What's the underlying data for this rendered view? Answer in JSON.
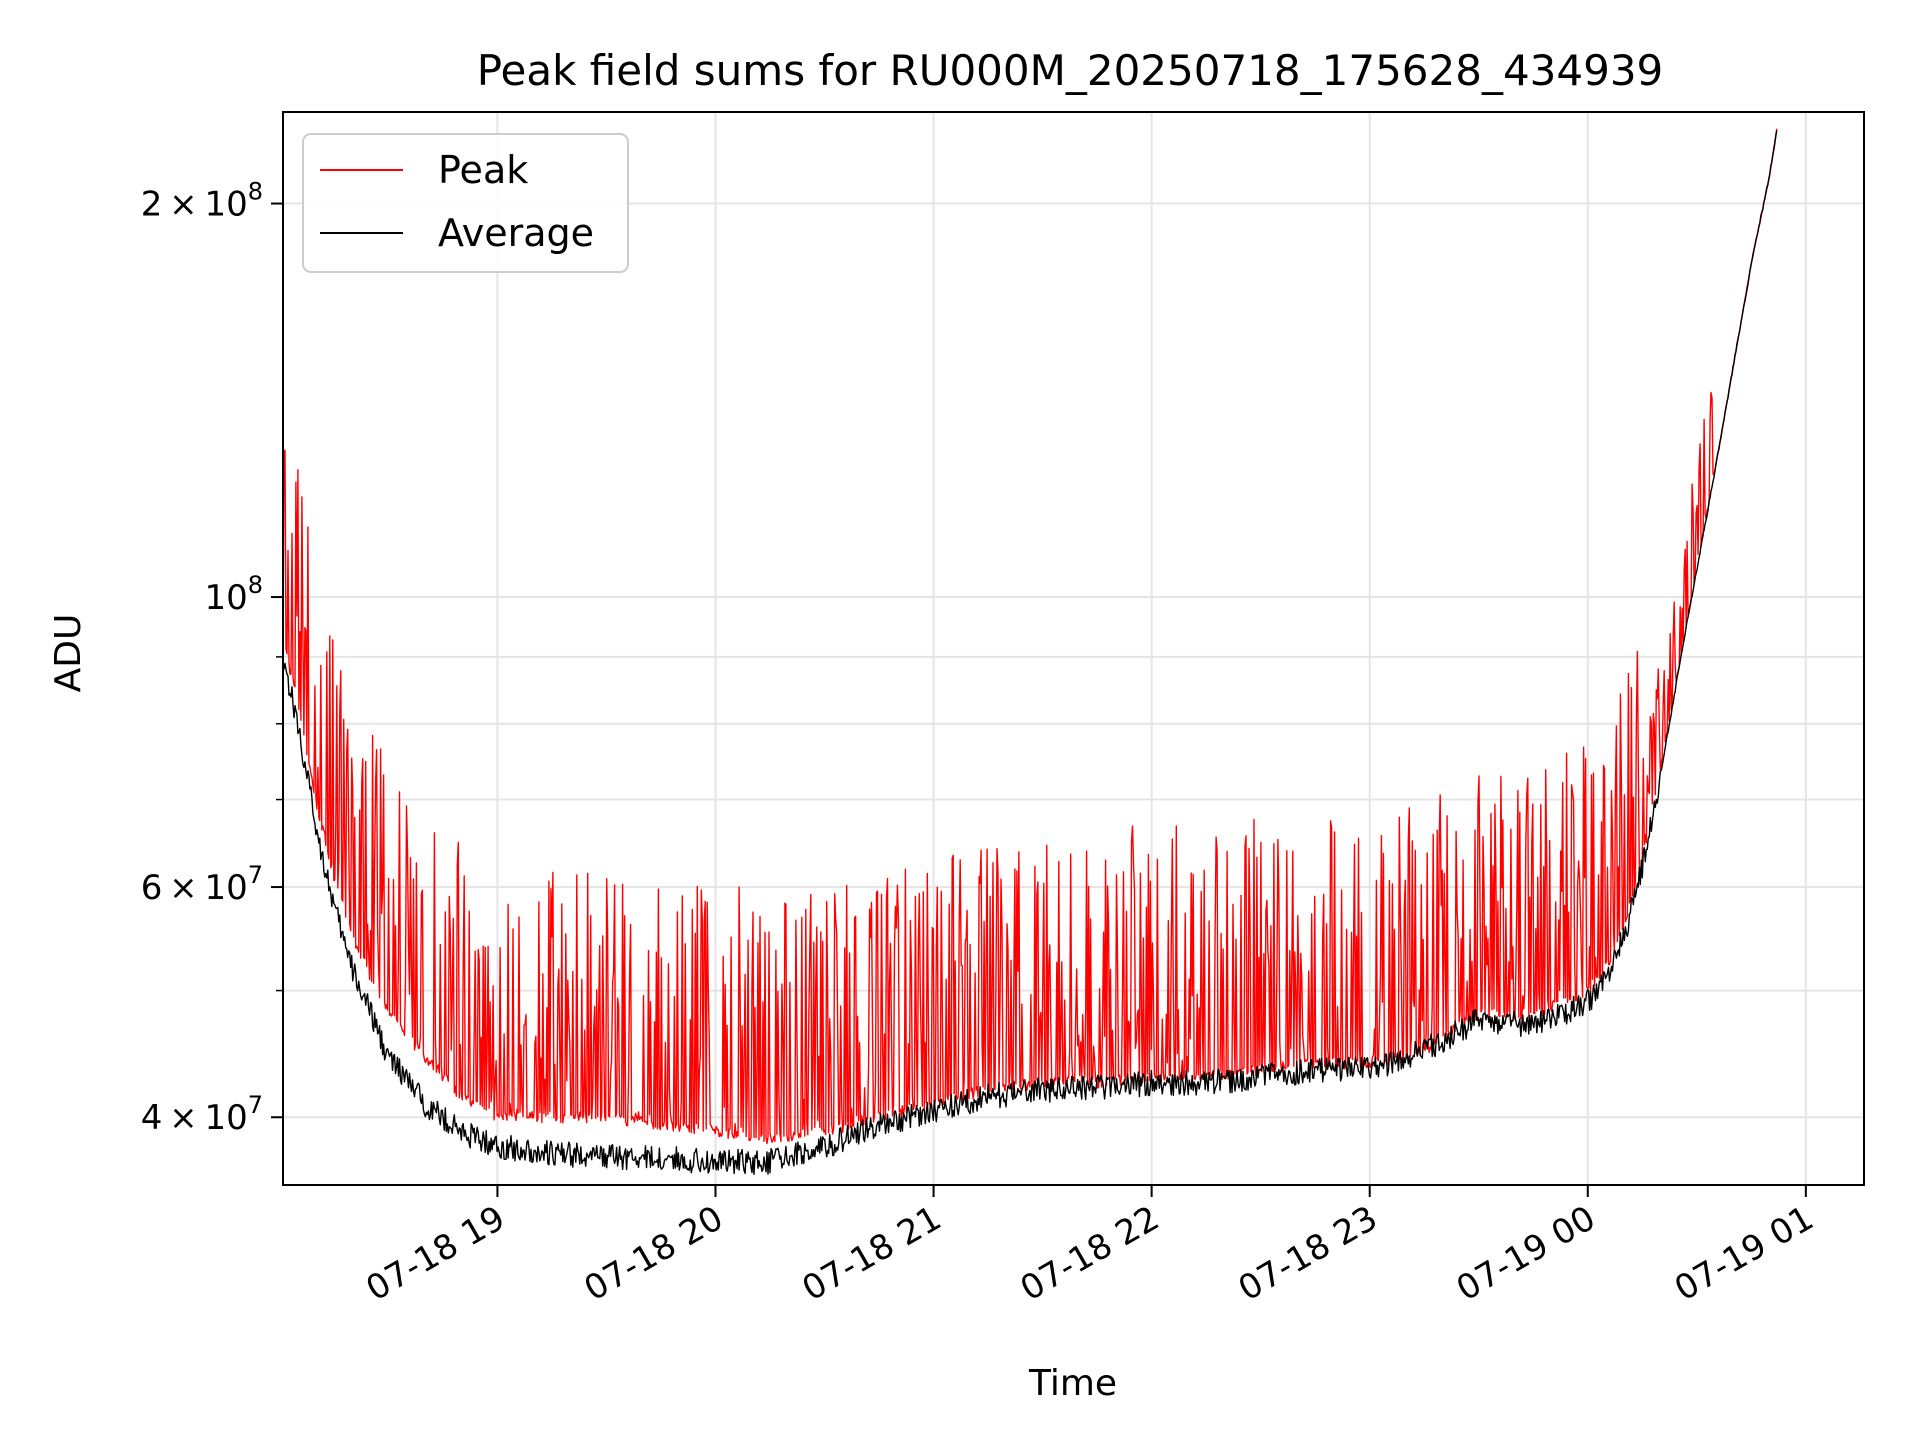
{
  "chart_data": {
    "type": "line",
    "title": "Peak field sums for RU000M_20250718_175628_434939",
    "xlabel": "Time",
    "ylabel": "ADU",
    "x_start": "07-18 18:01",
    "x_end": "07-19 01:16",
    "xlim": [
      "07-18 18:01",
      "07-19 01:16"
    ],
    "ylim": [
      35500000,
      235000000
    ],
    "yscale": "log",
    "grid": true,
    "legend_position": "top-left",
    "x_ticks": [
      {
        "label": "07-18 19",
        "time": "07-18 19:00"
      },
      {
        "label": "07-18 20",
        "time": "07-18 20:00"
      },
      {
        "label": "07-18 21",
        "time": "07-18 21:00"
      },
      {
        "label": "07-18 22",
        "time": "07-18 22:00"
      },
      {
        "label": "07-18 23",
        "time": "07-18 23:00"
      },
      {
        "label": "07-19 00",
        "time": "07-19 00:00"
      },
      {
        "label": "07-19 01",
        "time": "07-19 01:00"
      }
    ],
    "y_ticks": [
      {
        "mantissa": "4",
        "exp": "7",
        "value": 40000000
      },
      {
        "mantissa": "6",
        "exp": "7",
        "value": 60000000
      },
      {
        "mantissa": "",
        "exp": "8",
        "value": 100000000
      },
      {
        "mantissa": "2",
        "exp": "8",
        "value": 200000000
      }
    ],
    "y_minor_ticks": [
      50000000,
      70000000,
      80000000,
      90000000
    ],
    "series": [
      {
        "name": "Peak",
        "color": "#ff0000",
        "x": [
          "07-18 18:01",
          "07-18 18:05",
          "07-18 18:10",
          "07-18 18:15",
          "07-18 18:20",
          "07-18 18:30",
          "07-18 18:40",
          "07-18 18:50",
          "07-18 19:00",
          "07-18 19:15",
          "07-18 19:30",
          "07-18 19:45",
          "07-18 20:00",
          "07-18 20:15",
          "07-18 20:30",
          "07-18 20:45",
          "07-18 21:00",
          "07-18 21:15",
          "07-18 21:30",
          "07-18 21:45",
          "07-18 22:00",
          "07-18 22:15",
          "07-18 22:30",
          "07-18 22:45",
          "07-18 23:00",
          "07-18 23:15",
          "07-18 23:30",
          "07-18 23:45",
          "07-19 00:00",
          "07-19 00:05",
          "07-19 00:10",
          "07-19 00:15",
          "07-19 00:20",
          "07-19 00:25",
          "07-19 00:30",
          "07-19 00:35",
          "07-19 00:40",
          "07-19 00:45",
          "07-19 00:50",
          "07-19 00:52"
        ],
        "values": [
          93000000,
          83000000,
          70000000,
          61000000,
          55000000,
          48000000,
          44500000,
          41500000,
          40000000,
          40000000,
          40000000,
          39500000,
          39000000,
          38500000,
          39000000,
          40000000,
          41000000,
          42000000,
          42500000,
          42500000,
          43000000,
          43000000,
          43500000,
          44000000,
          44000000,
          45000000,
          48000000,
          48000000,
          50000000,
          52000000,
          56000000,
          63000000,
          74000000,
          88000000,
          105000000,
          125000000,
          150000000,
          180000000,
          210000000,
          228000000
        ]
      },
      {
        "name": "Average",
        "color": "#000000",
        "x": [
          "07-18 18:01",
          "07-18 18:05",
          "07-18 18:10",
          "07-18 18:15",
          "07-18 18:20",
          "07-18 18:30",
          "07-18 18:40",
          "07-18 18:50",
          "07-18 19:00",
          "07-18 19:15",
          "07-18 19:30",
          "07-18 19:45",
          "07-18 20:00",
          "07-18 20:15",
          "07-18 20:30",
          "07-18 20:45",
          "07-18 21:00",
          "07-18 21:15",
          "07-18 21:30",
          "07-18 21:45",
          "07-18 22:00",
          "07-18 22:15",
          "07-18 22:30",
          "07-18 22:45",
          "07-18 23:00",
          "07-18 23:15",
          "07-18 23:30",
          "07-18 23:45",
          "07-19 00:00",
          "07-19 00:05",
          "07-19 00:10",
          "07-19 00:15",
          "07-19 00:20",
          "07-19 00:25",
          "07-19 00:30",
          "07-19 00:35",
          "07-19 00:40",
          "07-19 00:45",
          "07-19 00:50",
          "07-19 00:52"
        ],
        "values": [
          90000000,
          80000000,
          67000000,
          58000000,
          52000000,
          44500000,
          41000000,
          39000000,
          38000000,
          37500000,
          37300000,
          37200000,
          37000000,
          37000000,
          38000000,
          39500000,
          40500000,
          41500000,
          42000000,
          42200000,
          42500000,
          42500000,
          43000000,
          43500000,
          43500000,
          45000000,
          47500000,
          47000000,
          49000000,
          51000000,
          55000000,
          62000000,
          73000000,
          88000000,
          105000000,
          125000000,
          150000000,
          180000000,
          210000000,
          228000000
        ]
      }
    ]
  }
}
